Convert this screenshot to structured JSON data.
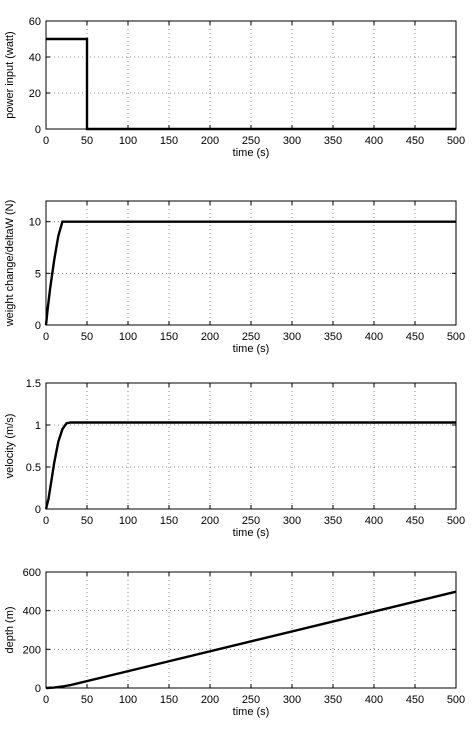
{
  "chart_data": [
    {
      "type": "line",
      "xlabel": "time (s)",
      "ylabel": "power input (watt)",
      "xlim": [
        0,
        500
      ],
      "ylim": [
        0,
        60
      ],
      "xticks": [
        "0",
        "50",
        "100",
        "150",
        "200",
        "250",
        "300",
        "350",
        "400",
        "450",
        "500"
      ],
      "yticks": [
        "0",
        "20",
        "40",
        "60"
      ],
      "grid": true,
      "series": [
        {
          "x": [
            0,
            50,
            50,
            500
          ],
          "y": [
            50,
            50,
            0,
            0
          ]
        }
      ]
    },
    {
      "type": "line",
      "xlabel": "time (s)",
      "ylabel": "weight change/deltaW (N)",
      "xlim": [
        0,
        500
      ],
      "ylim": [
        0,
        12
      ],
      "xticks": [
        "0",
        "50",
        "100",
        "150",
        "200",
        "250",
        "300",
        "350",
        "400",
        "450",
        "500"
      ],
      "yticks": [
        "0",
        "5",
        "10"
      ],
      "grid": true,
      "series": [
        {
          "x": [
            0,
            2,
            5,
            10,
            15,
            20,
            22,
            500
          ],
          "y": [
            0,
            1.5,
            3.5,
            6.3,
            8.6,
            10,
            10,
            10
          ]
        }
      ]
    },
    {
      "type": "line",
      "xlabel": "time (s)",
      "ylabel": "velocity (m/s)",
      "xlim": [
        0,
        500
      ],
      "ylim": [
        0,
        1.5
      ],
      "xticks": [
        "0",
        "50",
        "100",
        "150",
        "200",
        "250",
        "300",
        "350",
        "400",
        "450",
        "500"
      ],
      "yticks": [
        "0",
        "0.5",
        "1",
        "1.5"
      ],
      "grid": true,
      "series": [
        {
          "x": [
            0,
            3,
            6,
            10,
            15,
            20,
            25,
            30,
            500
          ],
          "y": [
            0,
            0.12,
            0.3,
            0.55,
            0.8,
            0.95,
            1.02,
            1.03,
            1.03
          ]
        }
      ]
    },
    {
      "type": "line",
      "xlabel": "time (s)",
      "ylabel": "depth (m)",
      "xlim": [
        0,
        500
      ],
      "ylim": [
        0,
        600
      ],
      "xticks": [
        "0",
        "50",
        "100",
        "150",
        "200",
        "250",
        "300",
        "350",
        "400",
        "450",
        "500"
      ],
      "yticks": [
        "0",
        "200",
        "400",
        "600"
      ],
      "grid": true,
      "series": [
        {
          "x": [
            0,
            10,
            20,
            30,
            500
          ],
          "y": [
            0,
            2,
            8,
            15,
            498
          ]
        }
      ]
    }
  ]
}
